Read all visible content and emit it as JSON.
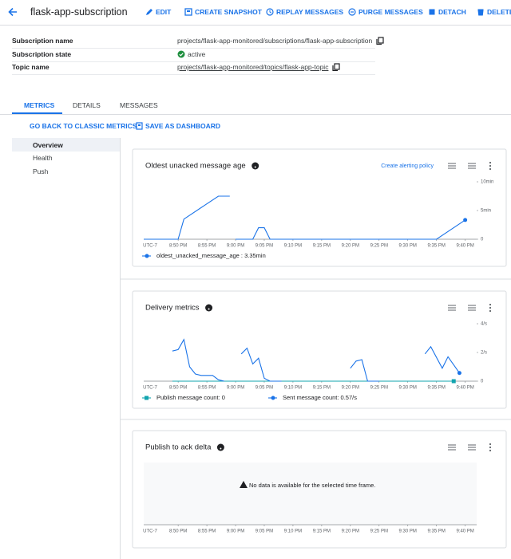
{
  "header": {
    "title": "flask-app-subscription",
    "actions": [
      "EDIT",
      "CREATE SNAPSHOT",
      "REPLAY MESSAGES",
      "PURGE MESSAGES",
      "DETACH",
      "DELETE"
    ]
  },
  "details": {
    "rows": [
      {
        "label": "Subscription name",
        "value": "projects/flask-app-monitored/subscriptions/flask-app-subscription"
      },
      {
        "label": "Subscription state",
        "value": "active"
      },
      {
        "label": "Topic name",
        "value": "projects/flask-app-monitored/topics/flask-app-topic"
      }
    ]
  },
  "tabs": [
    "METRICS",
    "DETAILS",
    "MESSAGES"
  ],
  "toolbar": [
    "GO BACK TO CLASSIC METRICS",
    "SAVE AS DASHBOARD"
  ],
  "sidebar": [
    "Overview",
    "Health",
    "Push"
  ],
  "charts": [
    {
      "type": "line",
      "title": "Oldest unacked message age",
      "link": "Create alerting policy",
      "timezone": "UTC-7",
      "xlim": [
        "8:44 PM",
        "9:42 PM"
      ],
      "xticks": [
        "8:50 PM",
        "8:55 PM",
        "9:00 PM",
        "9:05 PM",
        "9:10 PM",
        "9:15 PM",
        "9:20 PM",
        "9:25 PM",
        "9:30 PM",
        "9:35 PM",
        "9:40 PM"
      ],
      "ylim": [
        0,
        10
      ],
      "yticks": [
        0,
        {
          "value": 5,
          "label": "5min"
        },
        {
          "value": 10,
          "label": "10min"
        }
      ],
      "series": [
        {
          "name": "oldest_unacked_message_age : 3.35min",
          "color": "#1a73e8",
          "marker": "circle",
          "x": [
            "8:44 PM",
            "8:50 PM",
            "8:51 PM",
            "8:57 PM",
            "8:59 PM",
            null,
            "9:00 PM",
            "9:03 PM",
            "9:04 PM",
            "9:05 PM",
            "9:06 PM",
            "9:35 PM",
            "9:40 PM"
          ],
          "values": [
            0,
            0,
            3.5,
            7.5,
            7.5,
            null,
            0,
            0,
            2,
            2,
            0,
            0,
            3.35
          ]
        }
      ]
    },
    {
      "type": "line",
      "title": "Delivery metrics",
      "timezone": "UTC-7",
      "xlim": [
        "8:44 PM",
        "9:42 PM"
      ],
      "xticks": [
        "8:50 PM",
        "8:55 PM",
        "9:00 PM",
        "9:05 PM",
        "9:10 PM",
        "9:15 PM",
        "9:20 PM",
        "9:25 PM",
        "9:30 PM",
        "9:35 PM",
        "9:40 PM"
      ],
      "ylim": [
        0,
        4
      ],
      "yticks": [
        0,
        {
          "value": 2,
          "label": "2/s"
        },
        {
          "value": 4,
          "label": "4/s"
        }
      ],
      "series": [
        {
          "name": "Publish message count: 0",
          "color": "#12a4af",
          "marker": "square",
          "x": [
            "8:49 PM",
            "9:38 PM"
          ],
          "values": [
            0,
            0
          ]
        },
        {
          "name": "Sent message count: 0.57/s",
          "color": "#1a73e8",
          "marker": "circle",
          "x": [
            "8:49 PM",
            "8:50 PM",
            "8:51 PM",
            "8:52 PM",
            "8:53 PM",
            "8:54 PM",
            "8:56 PM",
            "8:57 PM",
            "8:58 PM",
            null,
            "9:01 PM",
            "9:02 PM",
            "9:03 PM",
            "9:04 PM",
            "9:05 PM",
            "9:06 PM",
            "9:08 PM",
            null,
            "9:20 PM",
            "9:21 PM",
            "9:22 PM",
            "9:23 PM",
            "9:25 PM",
            null,
            "9:33 PM",
            "9:34 PM",
            "9:36 PM",
            "9:37 PM",
            "9:39 PM"
          ],
          "values": [
            2.1,
            2.2,
            2.9,
            1.0,
            0.5,
            0.4,
            0.4,
            0.1,
            0,
            null,
            1.9,
            2.3,
            1.2,
            1.6,
            0.2,
            0,
            0,
            null,
            0.9,
            1.4,
            1.5,
            0,
            0,
            null,
            1.9,
            2.4,
            0.9,
            1.7,
            0.57
          ]
        }
      ]
    },
    {
      "type": "empty",
      "title": "Publish to ack delta",
      "timezone": "UTC-7",
      "message": "No data is available for the selected time frame.",
      "xlim": [
        "8:44 PM",
        "9:42 PM"
      ],
      "xticks": [
        "8:50 PM",
        "8:55 PM",
        "9:00 PM",
        "9:05 PM",
        "9:10 PM",
        "9:15 PM",
        "9:20 PM",
        "9:25 PM",
        "9:30 PM",
        "9:35 PM",
        "9:40 PM"
      ]
    }
  ]
}
